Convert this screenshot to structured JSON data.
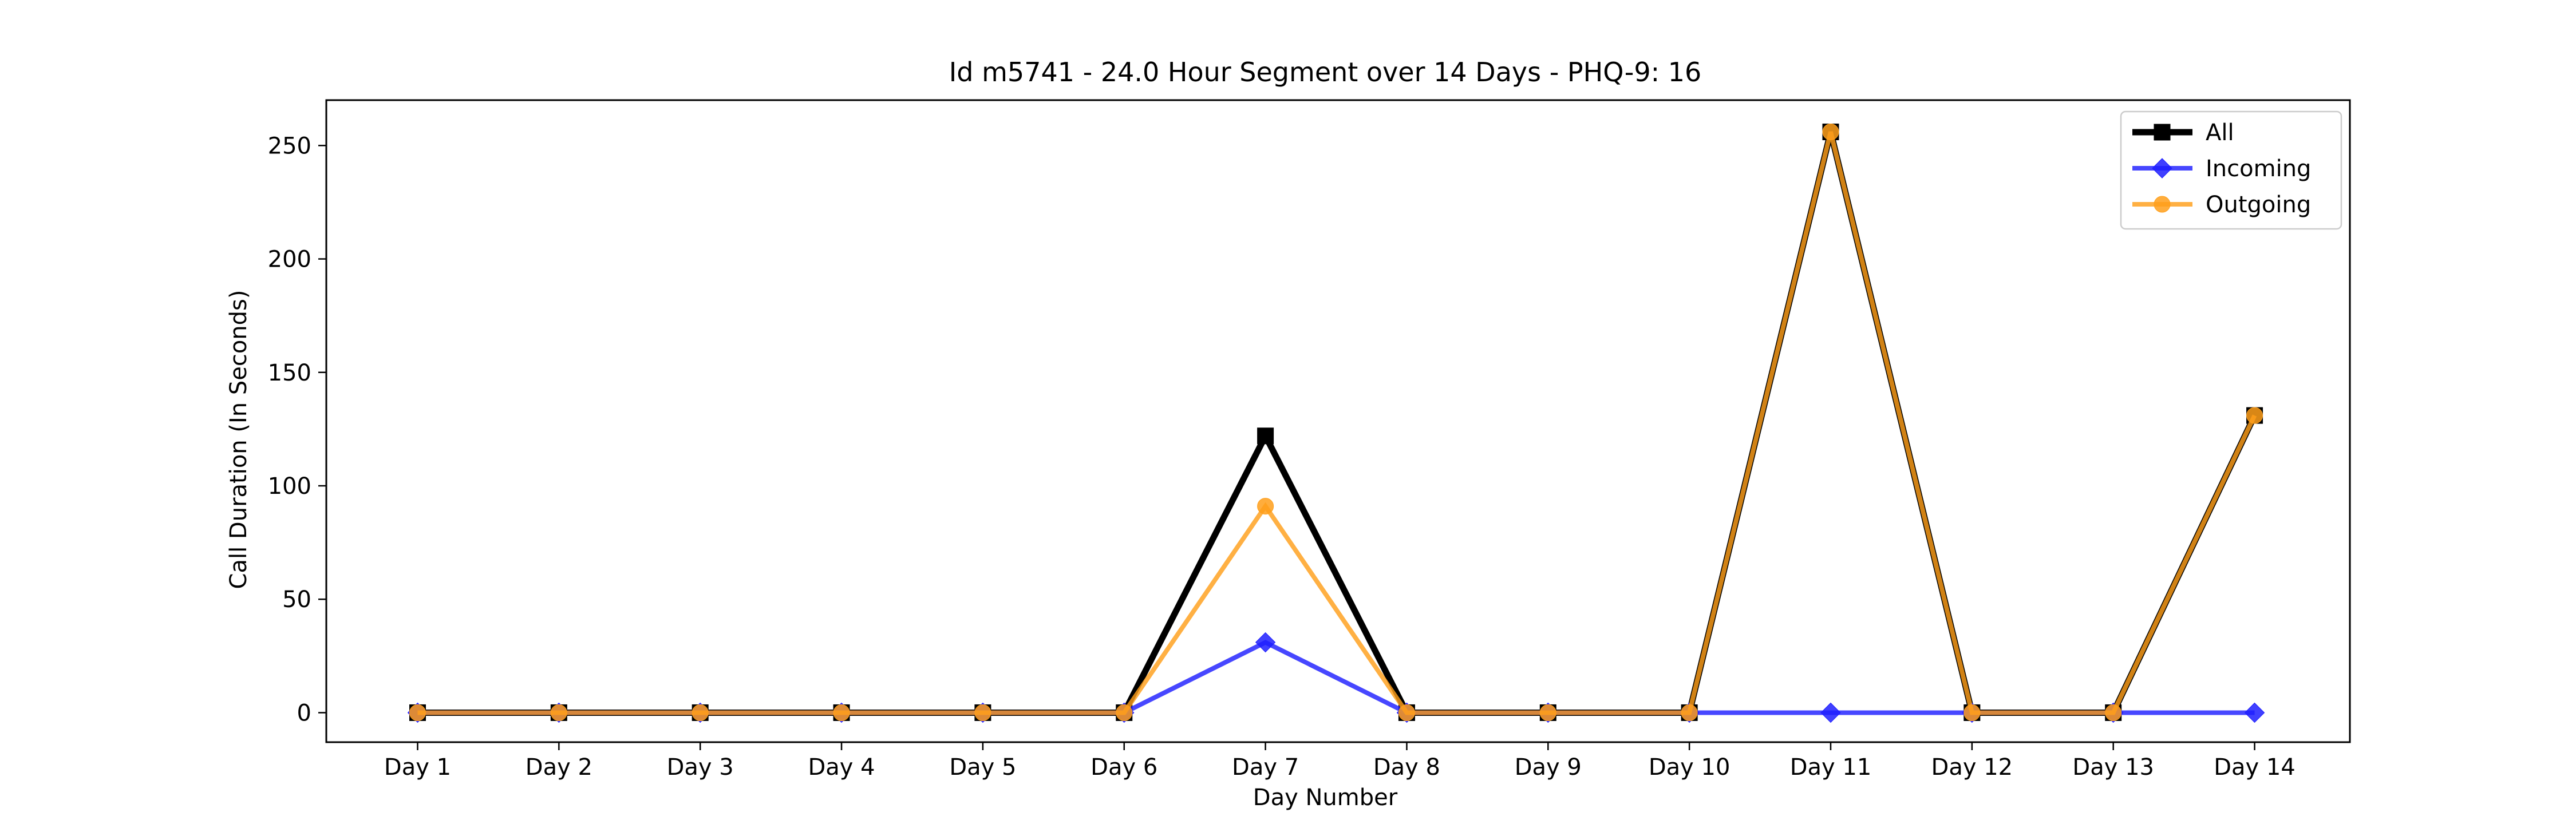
{
  "chart_data": {
    "type": "line",
    "title": "Id m5741 - 24.0 Hour Segment over 14 Days - PHQ-9: 16",
    "xlabel": "Day Number",
    "ylabel": "Call Duration (In Seconds)",
    "categories": [
      "Day 1",
      "Day 2",
      "Day 3",
      "Day 4",
      "Day 5",
      "Day 6",
      "Day 7",
      "Day 8",
      "Day 9",
      "Day 10",
      "Day 11",
      "Day 12",
      "Day 13",
      "Day 14"
    ],
    "ylim": [
      -13,
      270
    ],
    "yticks": [
      0,
      50,
      100,
      150,
      200,
      250
    ],
    "grid": false,
    "legend_position": "top-right",
    "series": [
      {
        "name": "All",
        "color": "#000000",
        "marker": "square",
        "values": [
          0,
          0,
          0,
          0,
          0,
          0,
          122,
          0,
          0,
          0,
          256,
          0,
          0,
          131
        ]
      },
      {
        "name": "Incoming",
        "color": "#1f1fff",
        "marker": "diamond",
        "values": [
          0,
          0,
          0,
          0,
          0,
          0,
          31,
          0,
          0,
          0,
          0,
          0,
          0,
          0
        ]
      },
      {
        "name": "Outgoing",
        "color": "#ff9f1a",
        "marker": "circle",
        "values": [
          0,
          0,
          0,
          0,
          0,
          0,
          91,
          0,
          0,
          0,
          256,
          0,
          0,
          131
        ]
      }
    ]
  }
}
